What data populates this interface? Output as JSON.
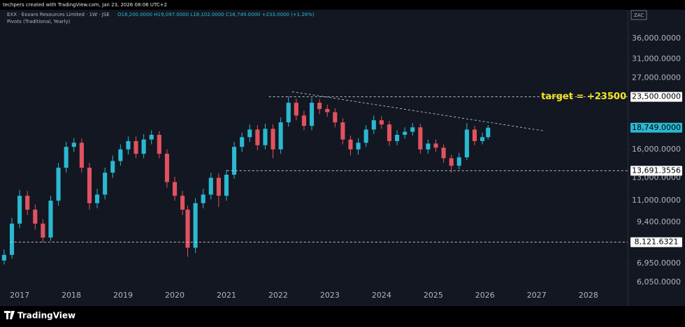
{
  "header": "techpers created with TradingView.com, Jan 23, 2026 08:06 UTC+2",
  "legend": {
    "symbol": "EXX · Exxaro Resources Limited · 1W · JSE",
    "ohlc": "O18,200.0000 H19,097.0000 L18,102.0000 C18,749.0000 +233.0000 (+1.26%)",
    "indicator": "Pivots (Traditional, Yearly)"
  },
  "currency": "ZAC",
  "brand": "TradingView",
  "chart_data": {
    "type": "candlestick",
    "log_scale": true,
    "up_color": "#2bb8d1",
    "down_color": "#e0535f",
    "xlim": [
      2016.62,
      2028.72
    ],
    "xticks": [
      2017,
      2018,
      2019,
      2020,
      2021,
      2022,
      2023,
      2024,
      2025,
      2026,
      2027,
      2028
    ],
    "ylim": [
      5250,
      44400
    ],
    "yticks": [
      {
        "value": 36000,
        "label": "36,000.0000"
      },
      {
        "value": 31000,
        "label": "31,000.0000"
      },
      {
        "value": 27000,
        "label": "27,000.0000"
      },
      {
        "value": 16000,
        "label": "16,000.0000"
      },
      {
        "value": 13000,
        "label": "13,000.0000"
      },
      {
        "value": 11000,
        "label": "11,000.0000"
      },
      {
        "value": 9400,
        "label": "9,400.0000"
      },
      {
        "value": 6950,
        "label": "6,950.0000"
      },
      {
        "value": 6050,
        "label": "6,050.0000"
      }
    ],
    "x": [
      2016.7,
      2016.85,
      2017.0,
      2017.15,
      2017.3,
      2017.45,
      2017.6,
      2017.75,
      2017.9,
      2018.05,
      2018.2,
      2018.35,
      2018.5,
      2018.65,
      2018.8,
      2018.95,
      2019.1,
      2019.25,
      2019.4,
      2019.55,
      2019.7,
      2019.85,
      2020.0,
      2020.15,
      2020.25,
      2020.4,
      2020.55,
      2020.7,
      2020.85,
      2021.0,
      2021.15,
      2021.3,
      2021.45,
      2021.6,
      2021.75,
      2021.9,
      2022.05,
      2022.2,
      2022.35,
      2022.5,
      2022.65,
      2022.8,
      2022.95,
      2023.1,
      2023.25,
      2023.4,
      2023.55,
      2023.7,
      2023.85,
      2024.0,
      2024.15,
      2024.3,
      2024.45,
      2024.6,
      2024.75,
      2024.9,
      2025.05,
      2025.2,
      2025.35,
      2025.5,
      2025.65,
      2025.8,
      2025.95,
      2026.06
    ],
    "open": [
      7100,
      7400,
      9300,
      11400,
      10300,
      9300,
      8400,
      11000,
      14000,
      16300,
      16800,
      14000,
      10800,
      11500,
      13500,
      14700,
      16000,
      17000,
      15500,
      17200,
      17800,
      15500,
      12600,
      11400,
      10300,
      7800,
      10800,
      11500,
      13000,
      11400,
      13300,
      16300,
      17500,
      18500,
      16500,
      18600,
      16000,
      19500,
      22500,
      20500,
      19000,
      22500,
      21500,
      21000,
      19500,
      17200,
      16000,
      16800,
      18500,
      19800,
      19200,
      17000,
      17800,
      18200,
      18800,
      16000,
      16700,
      16200,
      15000,
      14200,
      15100,
      18500,
      17000,
      17500
    ],
    "high": [
      7700,
      9700,
      11900,
      11800,
      10700,
      9600,
      11400,
      14500,
      16900,
      17400,
      17300,
      14500,
      12000,
      14000,
      15300,
      16600,
      17600,
      17600,
      17900,
      18400,
      18300,
      16000,
      13100,
      11800,
      10600,
      11200,
      12000,
      13500,
      13400,
      13800,
      16900,
      18100,
      19200,
      19100,
      19300,
      19200,
      20200,
      23600,
      23200,
      21200,
      23300,
      23100,
      22200,
      21600,
      20100,
      17700,
      17400,
      19100,
      20500,
      20400,
      19700,
      18400,
      18800,
      19400,
      19300,
      17200,
      17200,
      16600,
      15400,
      15600,
      19400,
      19000,
      18100,
      19100
    ],
    "low": [
      6900,
      7200,
      9000,
      9900,
      8900,
      8100,
      8200,
      10600,
      13500,
      15700,
      13500,
      10300,
      10400,
      11100,
      13000,
      14200,
      15400,
      15000,
      15000,
      16600,
      15000,
      12100,
      11000,
      9900,
      7300,
      7500,
      10400,
      11100,
      10500,
      11000,
      12900,
      15700,
      16900,
      15900,
      16000,
      15000,
      15500,
      18900,
      19800,
      18400,
      18400,
      20700,
      20300,
      18800,
      16600,
      15300,
      15400,
      16300,
      17900,
      18600,
      16400,
      16500,
      17300,
      17700,
      15500,
      15500,
      15700,
      14500,
      13500,
      13800,
      14800,
      16500,
      16600,
      17200
    ],
    "close": [
      7400,
      9300,
      11400,
      10300,
      9300,
      8400,
      11000,
      14000,
      16300,
      16800,
      14000,
      10800,
      11500,
      13500,
      14700,
      16000,
      17000,
      15500,
      17200,
      17800,
      15500,
      12600,
      11400,
      10300,
      7800,
      10800,
      11500,
      13000,
      11400,
      13300,
      16300,
      17500,
      18500,
      16500,
      18600,
      16000,
      19500,
      22500,
      20500,
      19000,
      22500,
      21500,
      21000,
      19500,
      17200,
      16000,
      16800,
      18500,
      19800,
      19200,
      17000,
      17800,
      18200,
      18800,
      16000,
      16700,
      16200,
      15000,
      14200,
      15100,
      18500,
      17000,
      17500,
      18749
    ],
    "levels": [
      {
        "value": 23500,
        "label": "23,500.0000",
        "start": 2021.82
      },
      {
        "value": 13691.3556,
        "label": "13,691.3556",
        "start": 2021.01
      },
      {
        "value": 8121.6321,
        "label": "8,121.6321",
        "start": 2016.82
      }
    ],
    "last_price": {
      "value": 18749,
      "label": "18,749.0000"
    },
    "trendline": {
      "x": [
        2022.27,
        2027.13
      ],
      "y": [
        24400,
        18330
      ]
    },
    "annotation": "target = +23500"
  }
}
